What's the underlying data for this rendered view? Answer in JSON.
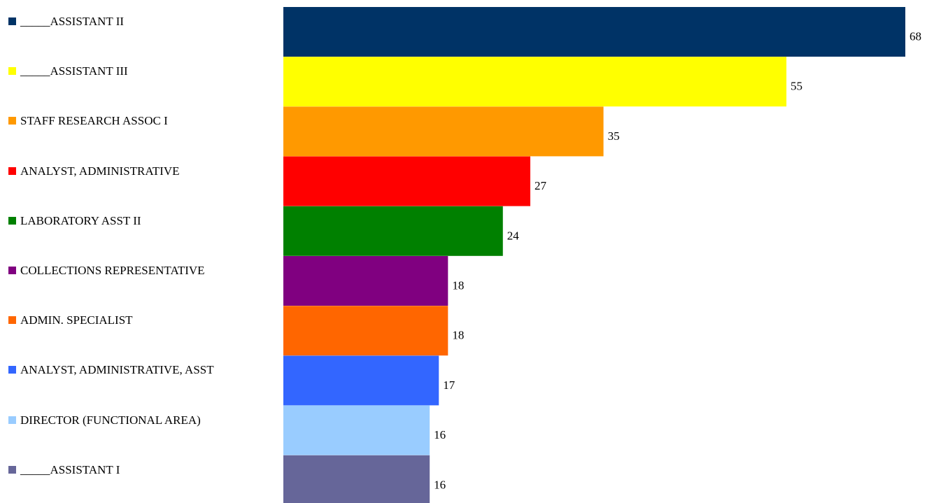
{
  "chart_data": {
    "type": "bar",
    "orientation": "horizontal",
    "categories": [
      "_____ASSISTANT II",
      "_____ASSISTANT III",
      "STAFF RESEARCH ASSOC I",
      "ANALYST, ADMINISTRATIVE",
      "LABORATORY ASST II",
      "COLLECTIONS REPRESENTATIVE",
      "ADMIN. SPECIALIST",
      "ANALYST, ADMINISTRATIVE, ASST",
      "DIRECTOR (FUNCTIONAL AREA)",
      "_____ASSISTANT I"
    ],
    "values": [
      68,
      55,
      35,
      27,
      24,
      18,
      18,
      17,
      16,
      16
    ],
    "colors": [
      "#003366",
      "#FFFF00",
      "#FF9900",
      "#FF0000",
      "#008000",
      "#800080",
      "#FF6600",
      "#3366FF",
      "#99CCFF",
      "#666699"
    ],
    "xlim": [
      0,
      68
    ],
    "grid": false,
    "legend": "left"
  }
}
